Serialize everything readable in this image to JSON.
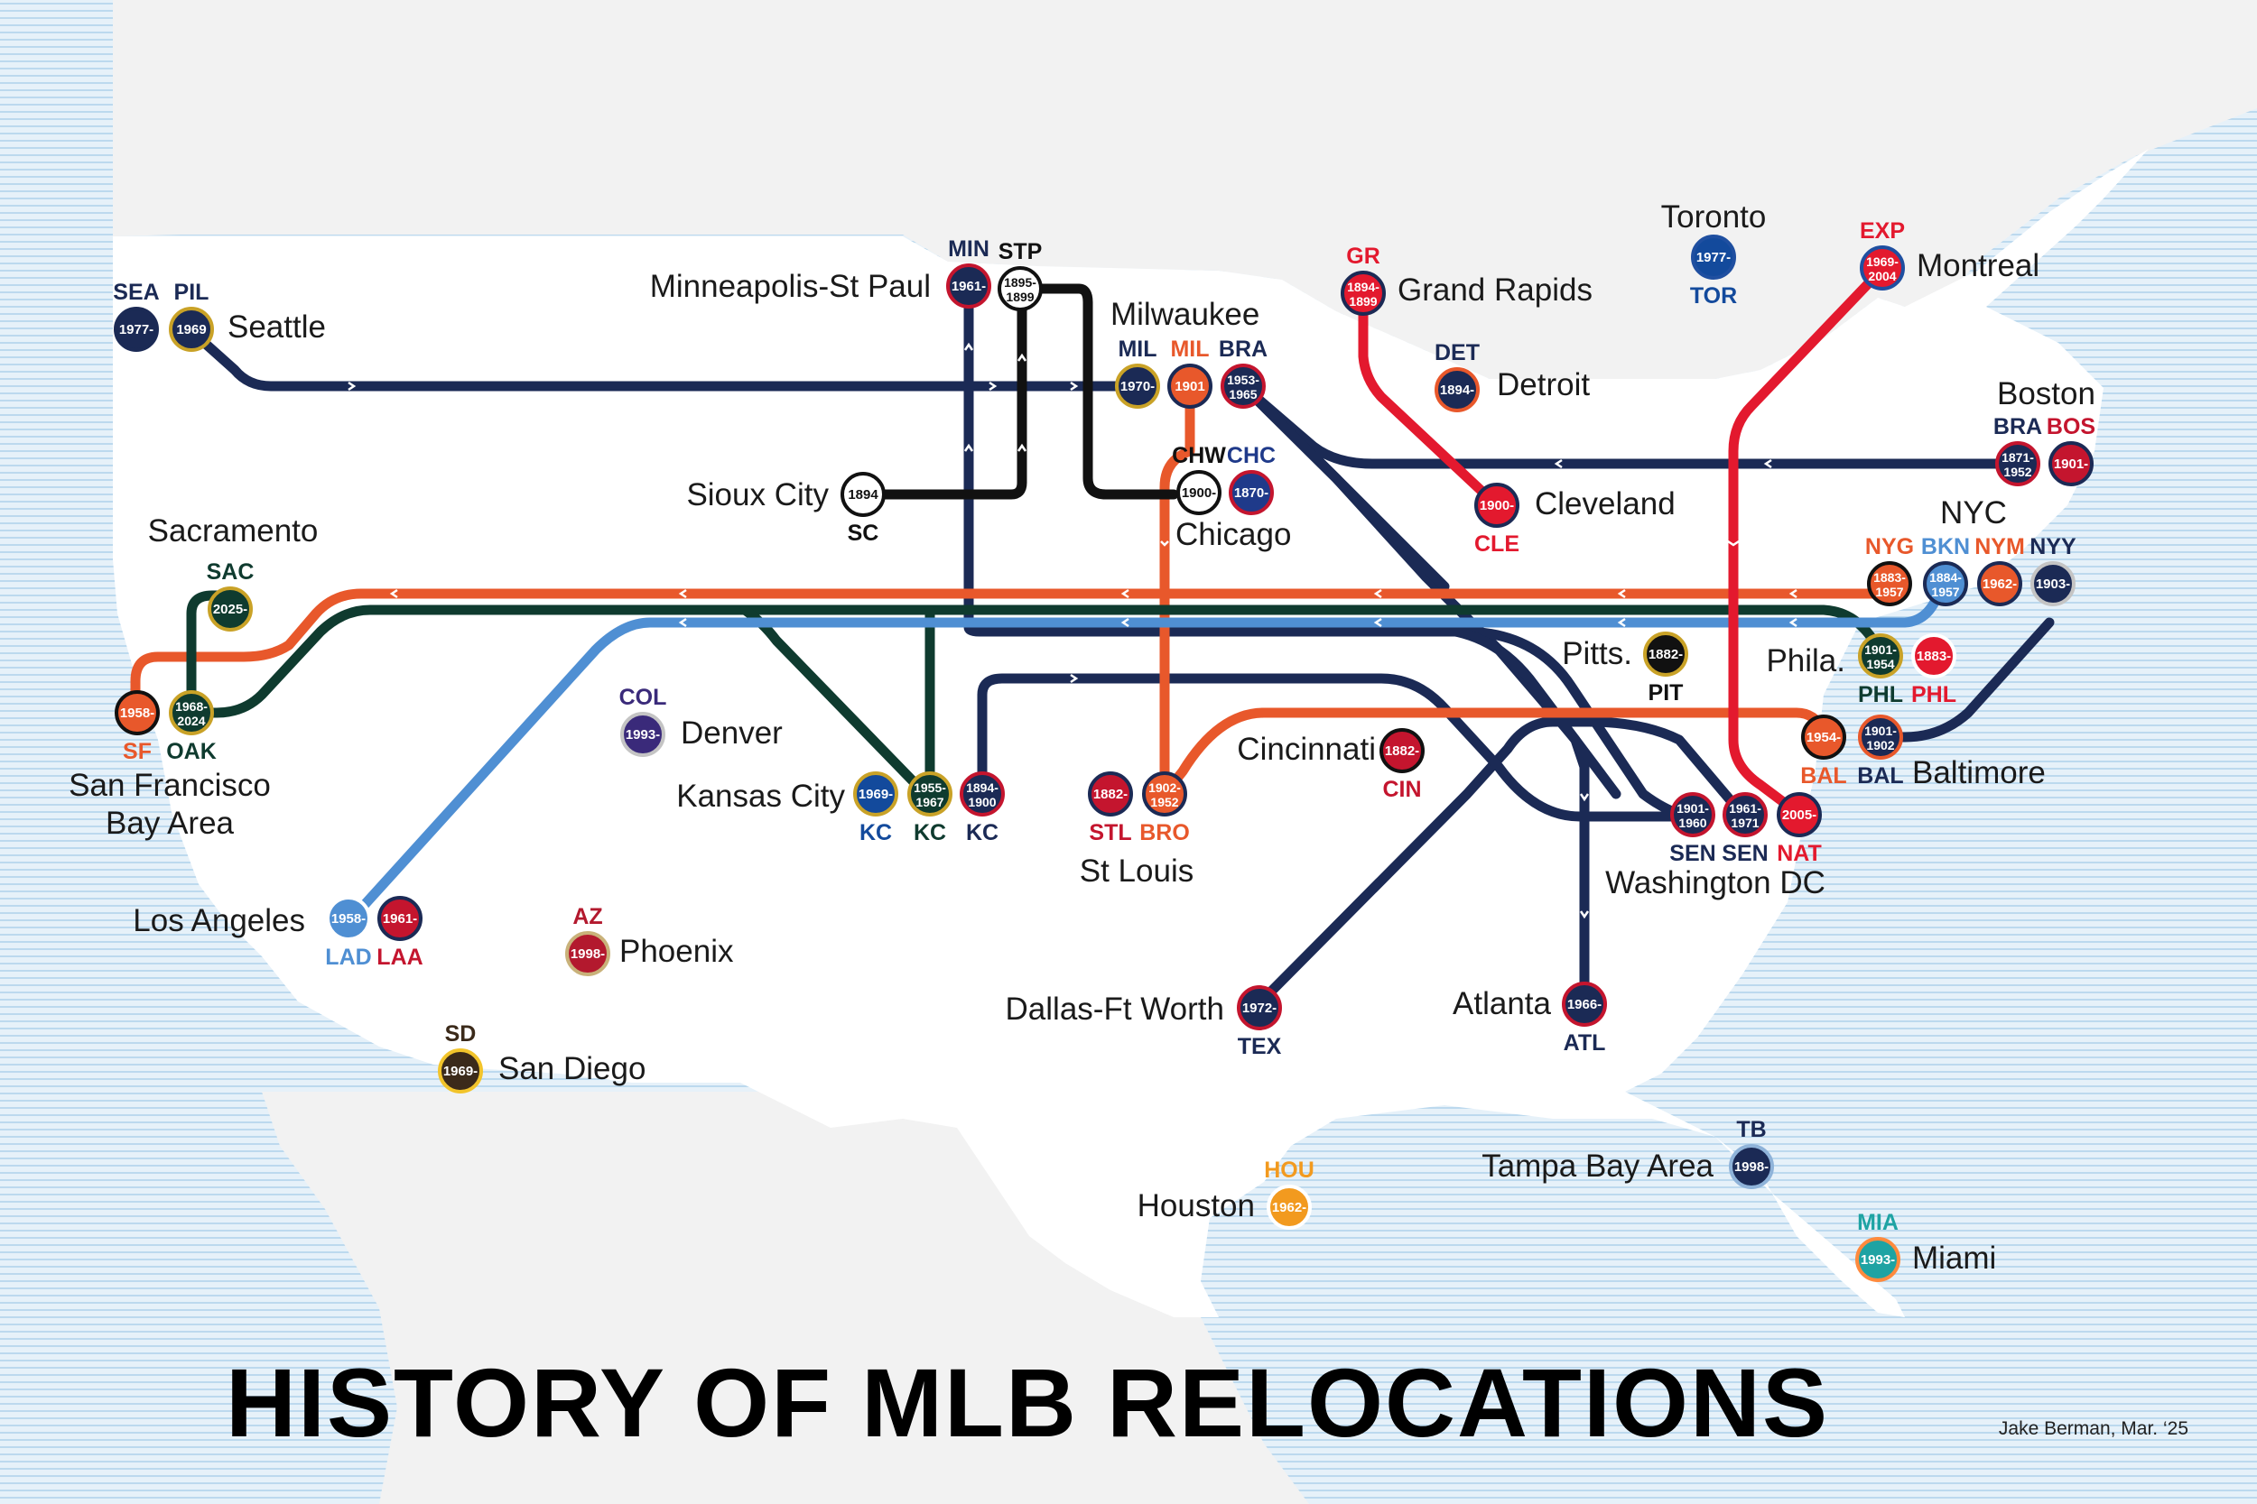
{
  "title": "HISTORY OF MLB RELOCATIONS",
  "credit": "Jake Berman, Mar. ‘25",
  "colors": {
    "water": "#d6e9f5",
    "land": "#ffffff",
    "foreign": "#f2f2f2",
    "navy": "#1b2a55",
    "orange": "#e8582b",
    "red": "#e3192e",
    "green": "#0f3b2f",
    "lightblue": "#4f8fd3",
    "black": "#111111"
  },
  "cities": {
    "seattle": "Seattle",
    "minneapolis": "Minneapolis-St Paul",
    "milwaukee": "Milwaukee",
    "grand_rapids": "Grand Rapids",
    "toronto": "Toronto",
    "montreal": "Montreal",
    "detroit": "Detroit",
    "boston": "Boston",
    "sioux_city": "Sioux City",
    "chicago": "Chicago",
    "cleveland": "Cleveland",
    "sacramento": "Sacramento",
    "nyc": "NYC",
    "pittsburgh": "Pitts.",
    "philadelphia": "Phila.",
    "denver": "Denver",
    "sf_line1": "San Francisco",
    "sf_line2": "Bay Area",
    "kansas_city": "Kansas City",
    "cincinnati": "Cincinnati",
    "baltimore": "Baltimore",
    "st_louis": "St Louis",
    "washington": "Washington DC",
    "los_angeles": "Los Angeles",
    "phoenix": "Phoenix",
    "dallas": "Dallas-Ft Worth",
    "atlanta": "Atlanta",
    "san_diego": "San Diego",
    "tampa": "Tampa Bay Area",
    "houston": "Houston",
    "miami": "Miami"
  },
  "teams": {
    "sea": {
      "code": "SEA",
      "years": "1977-",
      "color": "#1b2a55"
    },
    "pil": {
      "code": "PIL",
      "years": "1969",
      "color": "#1b2a55"
    },
    "min": {
      "code": "MIN",
      "years": "1961-",
      "color": "#1b2a55"
    },
    "stp": {
      "code": "STP",
      "years": "1895-1899",
      "color": "#111111"
    },
    "gr": {
      "code": "GR",
      "years": "1894-1899",
      "color": "#e3192e"
    },
    "tor": {
      "code": "TOR",
      "years": "1977-",
      "color": "#134a9c"
    },
    "exp": {
      "code": "EXP",
      "years": "1969-2004",
      "color": "#e3192e"
    },
    "mil_a": {
      "code": "MIL",
      "years": "1970-",
      "color": "#1b2a55"
    },
    "mil_b": {
      "code": "MIL",
      "years": "1901",
      "color": "#e8582b"
    },
    "bra_m": {
      "code": "BRA",
      "years": "1953-1965",
      "color": "#1b2a55"
    },
    "det": {
      "code": "DET",
      "years": "1894-",
      "color": "#1b2a55"
    },
    "bra_b": {
      "code": "BRA",
      "years": "1871-1952",
      "color": "#1b2a55"
    },
    "bos": {
      "code": "BOS",
      "years": "1901-",
      "color": "#c4152e"
    },
    "sc": {
      "code": "SC",
      "years": "1894",
      "color": "#111111"
    },
    "chw": {
      "code": "CHW",
      "years": "1900-",
      "color": "#111111"
    },
    "chc": {
      "code": "CHC",
      "years": "1870-",
      "color": "#1f3a8a"
    },
    "cle": {
      "code": "CLE",
      "years": "1900-",
      "color": "#e3192e"
    },
    "sac": {
      "code": "SAC",
      "years": "2025-",
      "color": "#0f3b2f"
    },
    "nyg": {
      "code": "NYG",
      "years": "1883-1957",
      "color": "#e8582b"
    },
    "bkn": {
      "code": "BKN",
      "years": "1884-1957",
      "color": "#4f8fd3"
    },
    "nym": {
      "code": "NYM",
      "years": "1962-",
      "color": "#e8582b"
    },
    "nyy": {
      "code": "NYY",
      "years": "1903-",
      "color": "#1b2a55"
    },
    "pit": {
      "code": "PIT",
      "years": "1882-",
      "color": "#111111"
    },
    "phl_a": {
      "code": "PHL",
      "years": "1901-1954",
      "color": "#0f3b2f"
    },
    "phl_n": {
      "code": "PHL",
      "years": "1883-",
      "color": "#e3192e"
    },
    "col": {
      "code": "COL",
      "years": "1993-",
      "color": "#3a2a7a"
    },
    "sf": {
      "code": "SF",
      "years": "1958-",
      "color": "#e8582b"
    },
    "oak": {
      "code": "OAK",
      "years": "1968-2024",
      "color": "#0f3b2f"
    },
    "kc_r": {
      "code": "KC",
      "years": "1969-",
      "color": "#134a9c"
    },
    "kc_a": {
      "code": "KC",
      "years": "1955-1967",
      "color": "#0f3b2f"
    },
    "kc_o": {
      "code": "KC",
      "years": "1894-1900",
      "color": "#1b2a55"
    },
    "cin": {
      "code": "CIN",
      "years": "1882-",
      "color": "#c4152e"
    },
    "bal_o": {
      "code": "BAL",
      "years": "1954-",
      "color": "#e8582b"
    },
    "bal_n": {
      "code": "BAL",
      "years": "1901-1902",
      "color": "#1b2a55"
    },
    "stl": {
      "code": "STL",
      "years": "1882-",
      "color": "#c4152e"
    },
    "bro": {
      "code": "BRO",
      "years": "1902-1952",
      "color": "#e8582b"
    },
    "sen_a": {
      "code": "SEN",
      "years": "1901-1960",
      "color": "#1b2a55"
    },
    "sen_b": {
      "code": "SEN",
      "years": "1961-1971",
      "color": "#1b2a55"
    },
    "nat": {
      "code": "NAT",
      "years": "2005-",
      "color": "#e3192e"
    },
    "lad": {
      "code": "LAD",
      "years": "1958-",
      "color": "#4f8fd3"
    },
    "laa": {
      "code": "LAA",
      "years": "1961-",
      "color": "#c4152e"
    },
    "az": {
      "code": "AZ",
      "years": "1998-",
      "color": "#b3192e"
    },
    "tex": {
      "code": "TEX",
      "years": "1972-",
      "color": "#1b2a55"
    },
    "atl": {
      "code": "ATL",
      "years": "1966-",
      "color": "#1b2a55"
    },
    "sd": {
      "code": "SD",
      "years": "1969-",
      "color": "#3b2a1a"
    },
    "tb": {
      "code": "TB",
      "years": "1998-",
      "color": "#1b2a55"
    },
    "hou": {
      "code": "HOU",
      "years": "1962-",
      "color": "#f29a1f"
    },
    "mia": {
      "code": "MIA",
      "years": "1993-",
      "color": "#1ea3a3"
    }
  }
}
